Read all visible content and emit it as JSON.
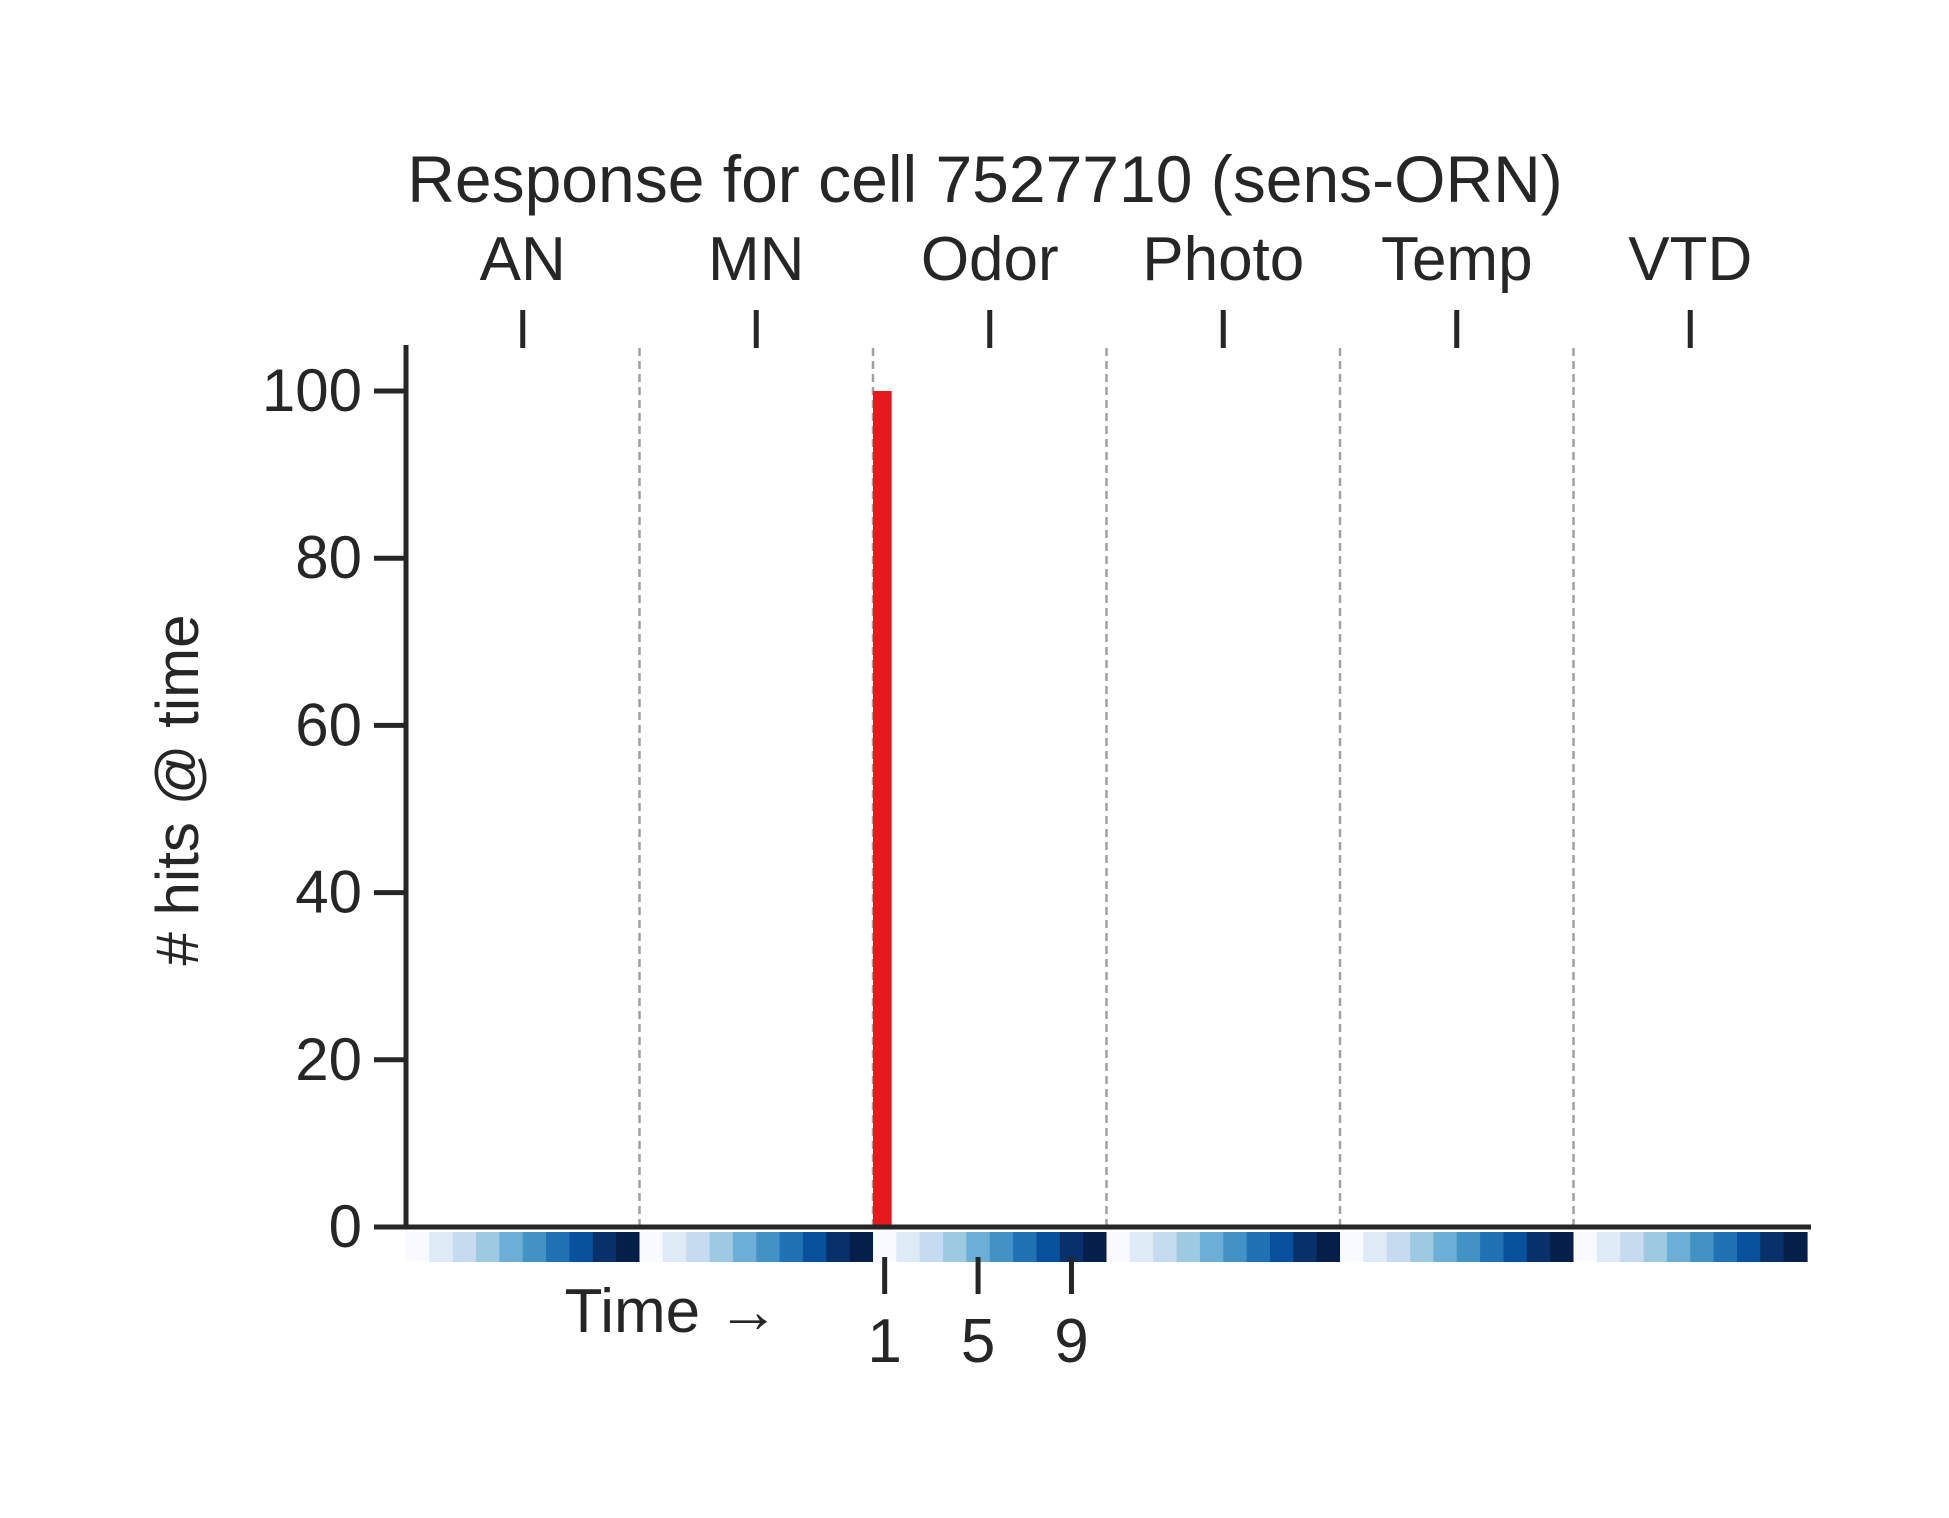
{
  "chart_data": {
    "type": "bar",
    "title": "Response for cell 7527710 (sens-ORN)",
    "ylabel": "# hits @ time",
    "xlabel": "Time →",
    "ylim": [
      0,
      105
    ],
    "yticks": [
      0,
      20,
      40,
      60,
      80,
      100
    ],
    "groups": [
      "AN",
      "MN",
      "Odor",
      "Photo",
      "Temp",
      "VTD"
    ],
    "bins_per_group": 10,
    "time_ticks": {
      "group": "Odor",
      "labels": [
        "1",
        "5",
        "9"
      ],
      "bins": [
        1,
        5,
        9
      ]
    },
    "series": [
      {
        "color": "#e41a1c",
        "values": [
          0,
          0,
          0,
          0,
          0,
          0,
          0,
          0,
          0,
          0,
          0,
          0,
          0,
          0,
          0,
          0,
          0,
          0,
          0,
          0,
          100,
          0,
          0,
          0,
          0,
          0,
          0,
          0,
          0,
          0,
          0,
          0,
          0,
          0,
          0,
          0,
          0,
          0,
          0,
          0,
          0,
          0,
          0,
          0,
          0,
          0,
          0,
          0,
          0,
          0,
          0,
          0,
          0,
          0,
          0,
          0,
          0,
          0,
          0,
          0
        ]
      }
    ],
    "time_strip_colors": [
      "#f7fbff",
      "#deebf7",
      "#c6dbef",
      "#9ecae1",
      "#6baed6",
      "#4292c6",
      "#2171b5",
      "#08519c",
      "#08306b",
      "#041f4a"
    ],
    "group_separator_style": "dashed",
    "grid": false,
    "legend": "none"
  }
}
